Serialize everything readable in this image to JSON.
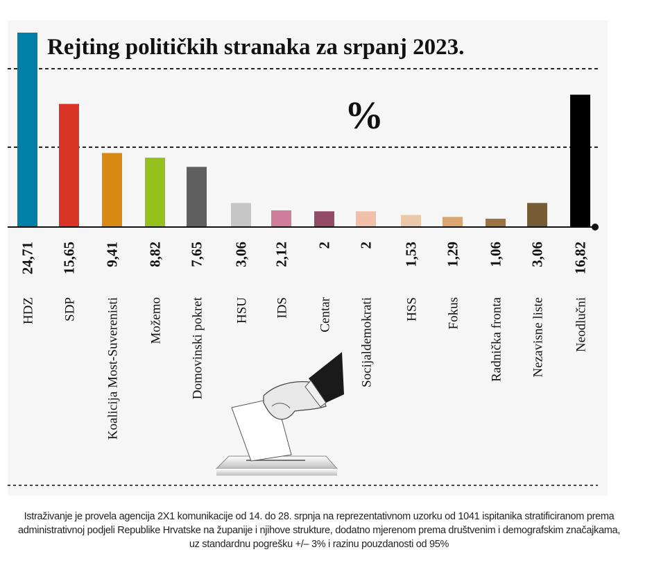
{
  "chart_data": {
    "type": "bar",
    "title": "Rejting političkih stranaka za srpanj 2023.",
    "unit_label": "%",
    "xlabel": "",
    "ylabel": "%",
    "ylim": [
      0,
      24.71
    ],
    "grid": "dashed horizontal",
    "legend": "none",
    "categories": [
      "HDZ",
      "SDP",
      "Koalicija Most-Suverenisti",
      "Možemo",
      "Domovinski pokret",
      "HSU",
      "IDS",
      "Centar",
      "Socijaldemokrati",
      "HSS",
      "Fokus",
      "Radnička fronta",
      "Nezavisne liste",
      "Neodlučni"
    ],
    "values": [
      24.71,
      15.65,
      9.41,
      8.82,
      7.65,
      3.06,
      2.12,
      2,
      2,
      1.53,
      1.29,
      1.06,
      3.06,
      16.82
    ],
    "value_labels": [
      "24,71",
      "15,65",
      "9,41",
      "8,82",
      "7,65",
      "3,06",
      "2,12",
      "2",
      "2",
      "1,53",
      "1,29",
      "1,06",
      "3,06",
      "16,82"
    ],
    "colors": [
      "#0080a8",
      "#d93526",
      "#d98a12",
      "#95c11f",
      "#5f5f5f",
      "#c6c6c6",
      "#cf7d9b",
      "#944b66",
      "#f2c0a8",
      "#ebc9a8",
      "#daa570",
      "#9c7444",
      "#765c34",
      "#000000"
    ]
  },
  "footnote": "Istraživanje je provela agencija 2X1 komunikacije od 14. do 28. srpnja na reprezentativnom uzorku od 1041 ispitanika stratificiranom prema administrativnoj podjeli Republike Hrvatske na županije i njihove strukture, dodatno mjerenom prema društvenim i demografskim značajkama, uz standardnu pogrešku +/– 3% i razinu pouzdanosti od 95%",
  "illustration": "ballot-box-hand-icon"
}
